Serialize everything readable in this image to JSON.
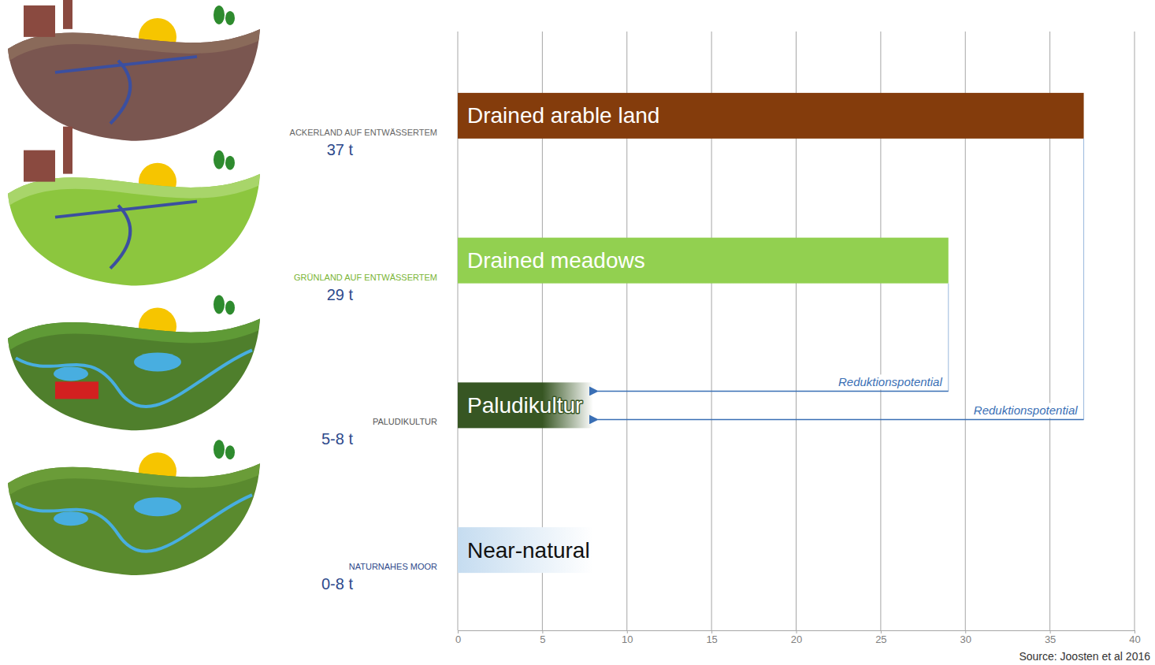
{
  "chart_data": {
    "type": "bar",
    "orientation": "horizontal",
    "categories": [
      "Drained arable land",
      "Drained meadows",
      "Paludikultur",
      "Near-natural"
    ],
    "group_labels": [
      "ACKERLAND AUF ENTWÄSSERTEM",
      "GRÜNLAND AUF ENTWÄSSERTEM",
      "PALUDIKULTUR",
      "NATURNAHES MOOR"
    ],
    "values": [
      37,
      29,
      8,
      8
    ],
    "low_values": [
      37,
      29,
      5,
      0
    ],
    "value_labels": [
      "37 t",
      "29 t",
      "5-8 t",
      "0-8 t"
    ],
    "colors": [
      "#843c0c",
      "#92d050",
      "#375623",
      "#c5dcf0"
    ],
    "xlim": [
      0,
      40
    ],
    "xticks": [
      0,
      5,
      10,
      15,
      20,
      25,
      30,
      35,
      40
    ],
    "grid": true,
    "tick_labels": "x",
    "annotations": [
      {
        "text": "Reduktionspotential",
        "from": 29,
        "to": 8
      },
      {
        "text": "Reduktionspotential",
        "from": 37,
        "to": 8
      }
    ],
    "source": "Source: Joosten et al 2016"
  }
}
